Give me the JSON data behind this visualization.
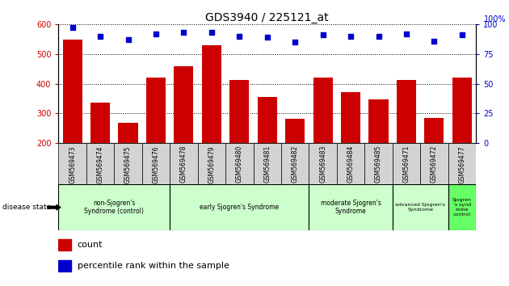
{
  "title": "GDS3940 / 225121_at",
  "samples": [
    "GSM569473",
    "GSM569474",
    "GSM569475",
    "GSM569476",
    "GSM569478",
    "GSM569479",
    "GSM569480",
    "GSM569481",
    "GSM569482",
    "GSM569483",
    "GSM569484",
    "GSM569485",
    "GSM569471",
    "GSM569472",
    "GSM569477"
  ],
  "counts": [
    548,
    337,
    268,
    420,
    460,
    530,
    412,
    355,
    283,
    420,
    372,
    348,
    412,
    285,
    420
  ],
  "percentiles": [
    97,
    90,
    87,
    92,
    93,
    93,
    90,
    89,
    85,
    91,
    90,
    90,
    92,
    86,
    91
  ],
  "bar_color": "#cc0000",
  "dot_color": "#0000cc",
  "ylim_left": [
    200,
    600
  ],
  "ylim_right": [
    0,
    100
  ],
  "yticks_left": [
    200,
    300,
    400,
    500,
    600
  ],
  "yticks_right": [
    0,
    25,
    50,
    75,
    100
  ],
  "groups": [
    {
      "label": "non-Sjogren's\nSyndrome (control)",
      "start": 0,
      "end": 4,
      "color": "#ccffcc"
    },
    {
      "label": "early Sjogren's Syndrome",
      "start": 4,
      "end": 9,
      "color": "#ccffcc"
    },
    {
      "label": "moderate Sjogren's\nSyndrome",
      "start": 9,
      "end": 12,
      "color": "#ccffcc"
    },
    {
      "label": "advanced Sjogren's\nSyndrome",
      "start": 12,
      "end": 14,
      "color": "#ccffcc"
    },
    {
      "label": "Sjogren\n's synd\nrome\ncontrol",
      "start": 14,
      "end": 15,
      "color": "#66ff66"
    }
  ],
  "background_color": "#ffffff",
  "tick_color_left": "#cc0000",
  "tick_color_right": "#0000cc",
  "label_bg": "#d3d3d3",
  "pct_label": "100%"
}
